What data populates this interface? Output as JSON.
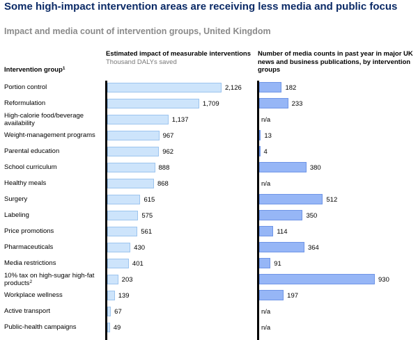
{
  "title": "Some high-impact intervention areas are receiving less media and public focus",
  "subtitle": "Impact and media count of intervention groups, United Kingdom",
  "row_header": "Intervention group",
  "row_header_sup": "1",
  "impact_header": "Estimated impact of measurable interventions",
  "impact_unit": "Thousand DALYs saved",
  "media_header": "Number of media counts in past year in major UK news and business publications, by intervention groups",
  "chart_data": [
    {
      "type": "bar",
      "orientation": "horizontal",
      "title": "Estimated impact of measurable interventions",
      "xlabel": "Thousand DALYs saved",
      "categories": [
        "Portion control",
        "Reformulation",
        "High-calorie food/beverage availability",
        "Weight-management programs",
        "Parental education",
        "School curriculum",
        "Healthy meals",
        "Surgery",
        "Labeling",
        "Price promotions",
        "Pharmaceuticals",
        "Media restrictions",
        "10% tax on high-sugar high-fat products",
        "Workplace wellness",
        "Active transport",
        "Public-health campaigns"
      ],
      "values": [
        2126,
        1709,
        1137,
        967,
        962,
        888,
        868,
        615,
        575,
        561,
        430,
        401,
        203,
        139,
        67,
        49
      ],
      "value_labels": [
        "2,126",
        "1,709",
        "1,137",
        "967",
        "962",
        "888",
        "868",
        "615",
        "575",
        "561",
        "430",
        "401",
        "203",
        "139",
        "67",
        "49"
      ],
      "xlim": [
        0,
        2300
      ],
      "grid": false
    },
    {
      "type": "bar",
      "orientation": "horizontal",
      "title": "Number of media counts in past year in major UK news and business publications, by intervention groups",
      "categories": [
        "Portion control",
        "Reformulation",
        "High-calorie food/beverage availability",
        "Weight-management programs",
        "Parental education",
        "School curriculum",
        "Healthy meals",
        "Surgery",
        "Labeling",
        "Price promotions",
        "Pharmaceuticals",
        "Media restrictions",
        "10% tax on high-sugar high-fat products",
        "Workplace wellness",
        "Active transport",
        "Public-health campaigns"
      ],
      "values": [
        182,
        233,
        null,
        13,
        4,
        380,
        null,
        512,
        350,
        114,
        364,
        91,
        930,
        197,
        null,
        null
      ],
      "value_labels": [
        "182",
        "233",
        "n/a",
        "13",
        "4",
        "380",
        "n/a",
        "512",
        "350",
        "114",
        "364",
        "91",
        "930",
        "197",
        "n/a",
        "n/a"
      ],
      "xlim": [
        0,
        1000
      ],
      "grid": false
    }
  ],
  "row_labels": [
    {
      "text": "Portion control"
    },
    {
      "text": "Reformulation"
    },
    {
      "text": "High-calorie food/beverage availability"
    },
    {
      "text": "Weight-management programs"
    },
    {
      "text": "Parental education"
    },
    {
      "text": "School curriculum"
    },
    {
      "text": "Healthy meals"
    },
    {
      "text": "Surgery"
    },
    {
      "text": "Labeling"
    },
    {
      "text": "Price promotions"
    },
    {
      "text": "Pharmaceuticals"
    },
    {
      "text": "Media restrictions"
    },
    {
      "text": "10% tax on high-sugar high-fat products",
      "sup": "2"
    },
    {
      "text": "Workplace wellness"
    },
    {
      "text": "Active transport"
    },
    {
      "text": "Public-health campaigns"
    }
  ],
  "colors": {
    "title": "#0b2a66",
    "impact_bar": "#cde4fb",
    "media_bar": "#96b6f6"
  }
}
